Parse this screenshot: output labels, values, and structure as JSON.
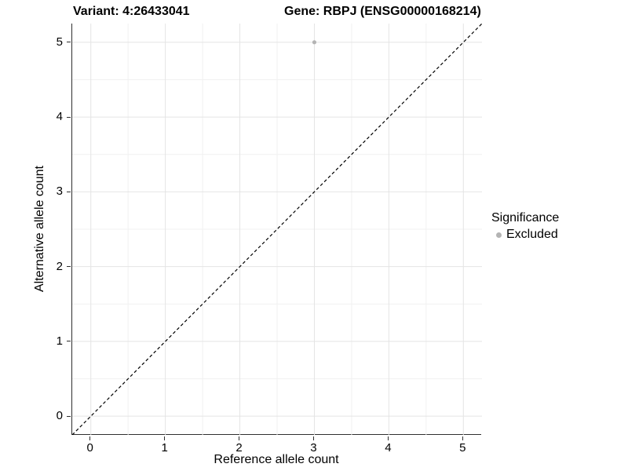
{
  "titles": {
    "left": "Variant: 4:26433041",
    "right": "Gene: RBPJ (ENSG00000168214)"
  },
  "chart_data": {
    "type": "scatter",
    "title_left": "Variant: 4:26433041",
    "title_right": "Gene: RBPJ (ENSG00000168214)",
    "xlabel": "Reference allele count",
    "ylabel": "Alternative allele count",
    "xlim": [
      -0.25,
      5.25
    ],
    "ylim": [
      -0.25,
      5.25
    ],
    "x_ticks": [
      0,
      1,
      2,
      3,
      4,
      5
    ],
    "y_ticks": [
      0,
      1,
      2,
      3,
      4,
      5
    ],
    "x_minor_ticks": [
      0.5,
      1.5,
      2.5,
      3.5,
      4.5
    ],
    "y_minor_ticks": [
      0.5,
      1.5,
      2.5,
      3.5,
      4.5
    ],
    "grid": true,
    "series": [
      {
        "name": "Excluded",
        "color": "#b4b4b4",
        "points": [
          {
            "x": 3,
            "y": 5
          }
        ]
      }
    ],
    "reference_line": {
      "type": "identity",
      "from": {
        "x": -0.25,
        "y": -0.25
      },
      "to": {
        "x": 5.25,
        "y": 5.25
      },
      "style": "dashed",
      "color": "#000000"
    },
    "legend": {
      "position": "right",
      "title": "Significance",
      "entries": [
        {
          "label": "Excluded",
          "color": "#b4b4b4"
        }
      ]
    }
  },
  "colors": {
    "background": "#ffffff",
    "grid_major": "#e4e4e4",
    "grid_minor": "#f1f1f1",
    "axis_line": "#2f2f2f",
    "text": "#000000",
    "point": "#b4b4b4"
  }
}
